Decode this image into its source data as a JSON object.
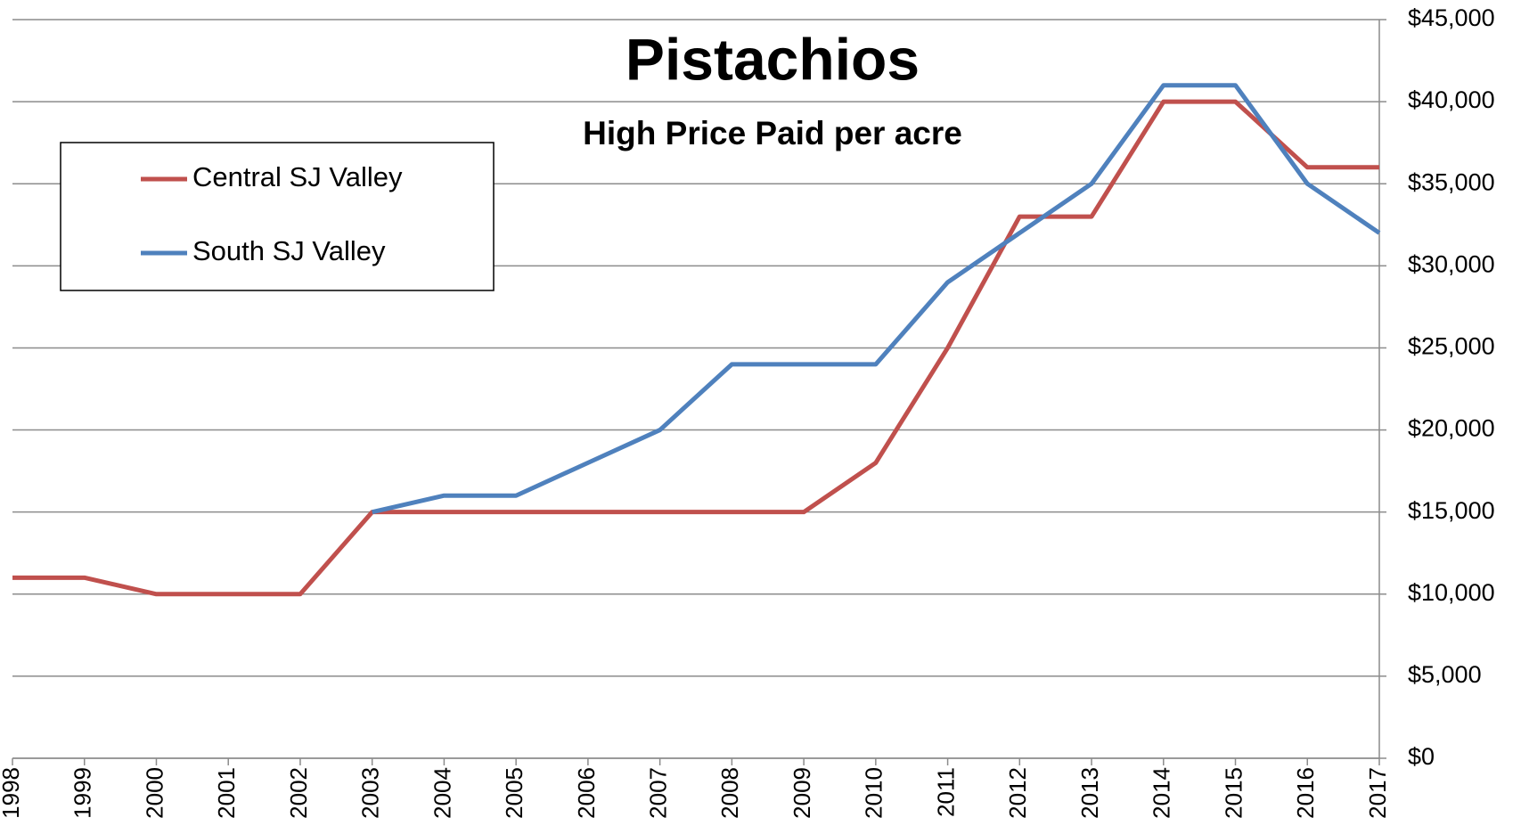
{
  "chart_data": {
    "type": "line",
    "title": "Pistachios",
    "subtitle": "High Price Paid per acre",
    "categories": [
      "1998",
      "1999",
      "2000",
      "2001",
      "2002",
      "2003",
      "2004",
      "2005",
      "2006",
      "2007",
      "2008",
      "2009",
      "2010",
      "2011",
      "2012",
      "2013",
      "2014",
      "2015",
      "2016",
      "2017"
    ],
    "series": [
      {
        "name": "Central SJ Valley",
        "color": "#c0504d",
        "values": [
          11000,
          11000,
          10000,
          10000,
          10000,
          15000,
          15000,
          15000,
          15000,
          15000,
          15000,
          15000,
          18000,
          25000,
          33000,
          33000,
          40000,
          40000,
          36000,
          36000
        ]
      },
      {
        "name": "South SJ Valley",
        "color": "#4f81bd",
        "values": [
          null,
          null,
          null,
          null,
          null,
          15000,
          16000,
          16000,
          18000,
          20000,
          24000,
          24000,
          24000,
          29000,
          32000,
          35000,
          41000,
          41000,
          35000,
          32000
        ]
      }
    ],
    "ylim": [
      0,
      45000
    ],
    "yticks": [
      {
        "value": 0,
        "label": "$0"
      },
      {
        "value": 5000,
        "label": "$5,000"
      },
      {
        "value": 10000,
        "label": "$10,000"
      },
      {
        "value": 15000,
        "label": "$15,000"
      },
      {
        "value": 20000,
        "label": "$20,000"
      },
      {
        "value": 25000,
        "label": "$25,000"
      },
      {
        "value": 30000,
        "label": "$30,000"
      },
      {
        "value": 35000,
        "label": "$35,000"
      },
      {
        "value": 40000,
        "label": "$40,000"
      },
      {
        "value": 45000,
        "label": "$45,000"
      }
    ],
    "grid": true,
    "legend": "upper-left"
  }
}
